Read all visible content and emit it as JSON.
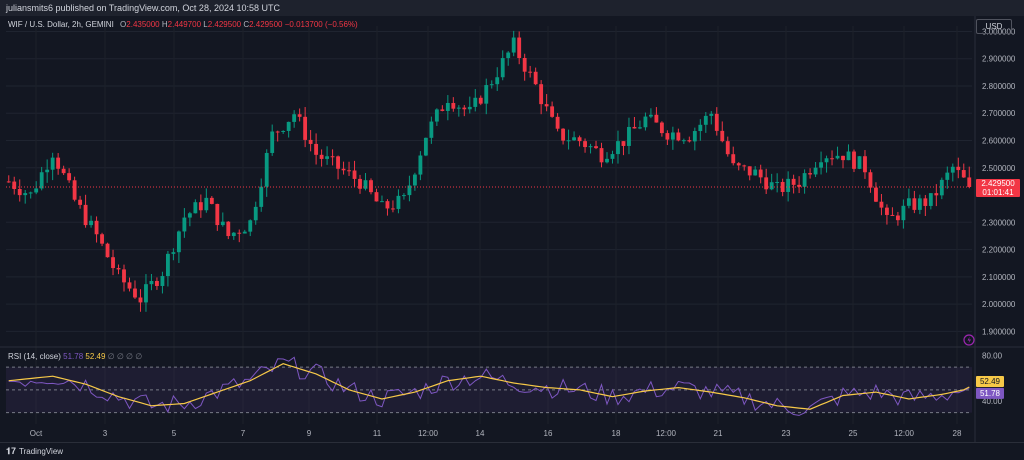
{
  "header": {
    "published_text": "juliansmits6 published on TradingView.com, Oct 28, 2024 10:58 UTC"
  },
  "symbol": {
    "name": "WIF / U.S. Dollar, 2h, GEMINI",
    "open_label": "O",
    "open": "2.435000",
    "high_label": "H",
    "high": "2.449700",
    "low_label": "L",
    "low": "2.429500",
    "close_label": "C",
    "close": "2.429500",
    "change": "−0.013700 (−0.56%)"
  },
  "currency_button": "USD",
  "price_tag": {
    "value": "2.429500",
    "countdown": "01:01:41"
  },
  "rsi_legend": {
    "title": "RSI (14, close)",
    "value1": "51.78",
    "value2": "52.49",
    "na": "∅ ∅ ∅ ∅"
  },
  "footer": {
    "brand": "TradingView"
  },
  "colors": {
    "up": "#089981",
    "down": "#f23645",
    "rsi": "#7e57c2",
    "rsi_ma": "#f7c948",
    "bg": "#131722"
  },
  "chart_data": [
    {
      "type": "candlestick",
      "title": "WIF / U.S. Dollar, 2h, GEMINI",
      "x_ticks": [
        "Oct",
        "3",
        "5",
        "7",
        "9",
        "11",
        "12:00",
        "14",
        "16",
        "18",
        "12:00",
        "21",
        "23",
        "25",
        "12:00",
        "28"
      ],
      "y_ticks": [
        "3.000000",
        "2.900000",
        "2.800000",
        "2.700000",
        "2.600000",
        "2.500000",
        "2.300000",
        "2.200000",
        "2.100000",
        "2.000000",
        "1.900000"
      ],
      "ylim": [
        1.85,
        3.02
      ],
      "last_price": 2.4295,
      "approx_close_path": [
        [
          0,
          2.45
        ],
        [
          4,
          2.4
        ],
        [
          8,
          2.56
        ],
        [
          12,
          2.38
        ],
        [
          16,
          2.25
        ],
        [
          20,
          2.1
        ],
        [
          24,
          2.02
        ],
        [
          28,
          2.12
        ],
        [
          32,
          2.32
        ],
        [
          36,
          2.38
        ],
        [
          40,
          2.25
        ],
        [
          44,
          2.3
        ],
        [
          48,
          2.62
        ],
        [
          52,
          2.7
        ],
        [
          56,
          2.55
        ],
        [
          60,
          2.5
        ],
        [
          64,
          2.45
        ],
        [
          68,
          2.35
        ],
        [
          72,
          2.38
        ],
        [
          76,
          2.62
        ],
        [
          80,
          2.76
        ],
        [
          84,
          2.7
        ],
        [
          88,
          2.82
        ],
        [
          92,
          2.95
        ],
        [
          96,
          2.8
        ],
        [
          100,
          2.62
        ],
        [
          104,
          2.6
        ],
        [
          108,
          2.55
        ],
        [
          112,
          2.6
        ],
        [
          116,
          2.68
        ],
        [
          120,
          2.63
        ],
        [
          124,
          2.62
        ],
        [
          128,
          2.7
        ],
        [
          132,
          2.5
        ],
        [
          136,
          2.48
        ],
        [
          140,
          2.42
        ],
        [
          144,
          2.45
        ],
        [
          148,
          2.55
        ],
        [
          152,
          2.55
        ],
        [
          156,
          2.5
        ],
        [
          160,
          2.3
        ],
        [
          164,
          2.36
        ],
        [
          168,
          2.38
        ],
        [
          172,
          2.5
        ],
        [
          175,
          2.43
        ]
      ]
    },
    {
      "type": "line",
      "title": "RSI (14, close)",
      "y_ticks": [
        "80.00",
        "40.00"
      ],
      "ylim": [
        20,
        85
      ],
      "upper_band": 70,
      "middle_band": 50,
      "lower_band": 30,
      "series": [
        {
          "name": "RSI",
          "last": 51.78
        },
        {
          "name": "RSI MA",
          "last": 52.49
        }
      ],
      "approx_rsi_ma_path": [
        [
          0,
          58
        ],
        [
          8,
          62
        ],
        [
          14,
          55
        ],
        [
          20,
          44
        ],
        [
          26,
          36
        ],
        [
          32,
          38
        ],
        [
          38,
          48
        ],
        [
          44,
          58
        ],
        [
          50,
          73
        ],
        [
          56,
          64
        ],
        [
          62,
          50
        ],
        [
          68,
          42
        ],
        [
          74,
          48
        ],
        [
          80,
          58
        ],
        [
          86,
          62
        ],
        [
          92,
          56
        ],
        [
          98,
          52
        ],
        [
          104,
          50
        ],
        [
          110,
          44
        ],
        [
          116,
          49
        ],
        [
          122,
          52
        ],
        [
          128,
          48
        ],
        [
          134,
          43
        ],
        [
          140,
          36
        ],
        [
          146,
          33
        ],
        [
          152,
          45
        ],
        [
          158,
          48
        ],
        [
          164,
          42
        ],
        [
          170,
          46
        ],
        [
          175,
          51
        ]
      ]
    }
  ]
}
